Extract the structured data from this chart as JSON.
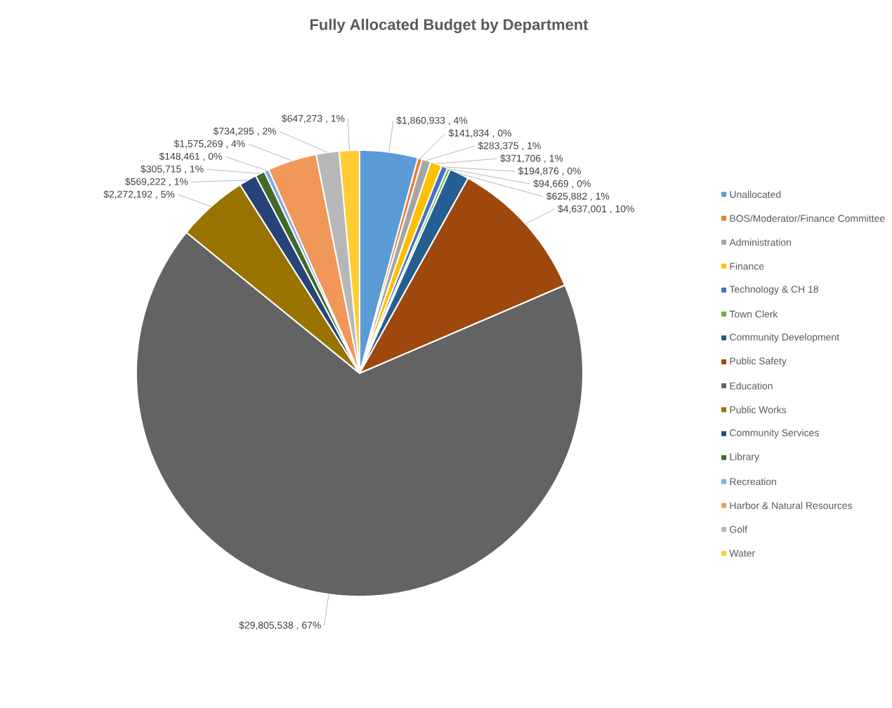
{
  "chart_data": {
    "type": "pie",
    "title": "Fully Allocated Budget by Department",
    "categories": [
      "Unallocated",
      "BOS/Moderator/Finance Committee",
      "Administration",
      "Finance",
      "Technology & CH 18",
      "Town Clerk",
      "Community Development",
      "Public Safety",
      "Education",
      "Public Works",
      "Community Services",
      "Library",
      "Recreation",
      "Harbor & Natural Resources",
      "Golf",
      "Water"
    ],
    "values": [
      1860933,
      141834,
      283375,
      371706,
      194876,
      94669,
      625882,
      4637001,
      29805538,
      2272192,
      569222,
      305715,
      148461,
      1575269,
      734295,
      647273
    ],
    "value_labels": [
      "$1,860,933 , 4%",
      "$141,834 , 0%",
      "$283,375 , 1%",
      "$371,706 , 1%",
      "$194,876 , 0%",
      "$94,669 , 0%",
      "$625,882 , 1%",
      "$4,637,001 , 10%",
      "$29,805,538 , 67%",
      "$2,272,192 , 5%",
      "$569,222 , 1%",
      "$305,715 , 1%",
      "$148,461 , 0%",
      "$1,575,269 , 4%",
      "$734,295 , 2%",
      "$647,273 , 1%"
    ],
    "colors": [
      "#5b9bd5",
      "#ed7d31",
      "#a5a5a5",
      "#ffc000",
      "#4472c4",
      "#70ad47",
      "#255e91",
      "#9e480e",
      "#636363",
      "#997300",
      "#264478",
      "#43682b",
      "#7cafdd",
      "#f1975a",
      "#b7b7b7",
      "#ffcd33"
    ],
    "legend": "right"
  }
}
